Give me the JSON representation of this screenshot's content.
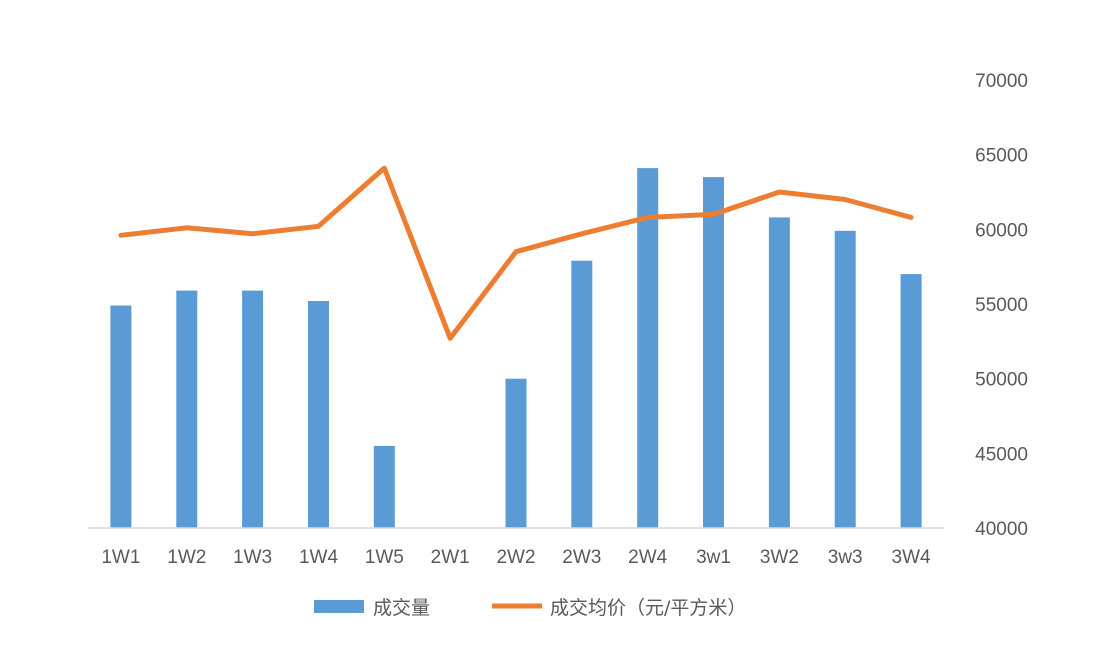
{
  "chart_data": {
    "type": "bar+line",
    "categories": [
      "1W1",
      "1W2",
      "1W3",
      "1W4",
      "1W5",
      "2W1",
      "2W2",
      "2W3",
      "2W4",
      "3w1",
      "3W2",
      "3w3",
      "3W4"
    ],
    "series": [
      {
        "name": "成交量",
        "type": "bar",
        "color": "#5B9BD5",
        "values": [
          54900,
          55900,
          55900,
          55200,
          45500,
          null,
          50000,
          57900,
          64100,
          63500,
          60800,
          59900,
          57000
        ]
      },
      {
        "name": "成交均价（元/平方米）",
        "type": "line",
        "color": "#ED7D31",
        "values": [
          59600,
          60100,
          59700,
          60200,
          64100,
          52700,
          58500,
          59700,
          60800,
          61000,
          62500,
          62000,
          60800
        ]
      }
    ],
    "y_axis": {
      "position": "right",
      "min": 40000,
      "max": 70000,
      "ticks": [
        "40000",
        "45000",
        "50000",
        "55000",
        "60000",
        "65000",
        "70000"
      ]
    },
    "grid": false,
    "legend": "bottom"
  }
}
